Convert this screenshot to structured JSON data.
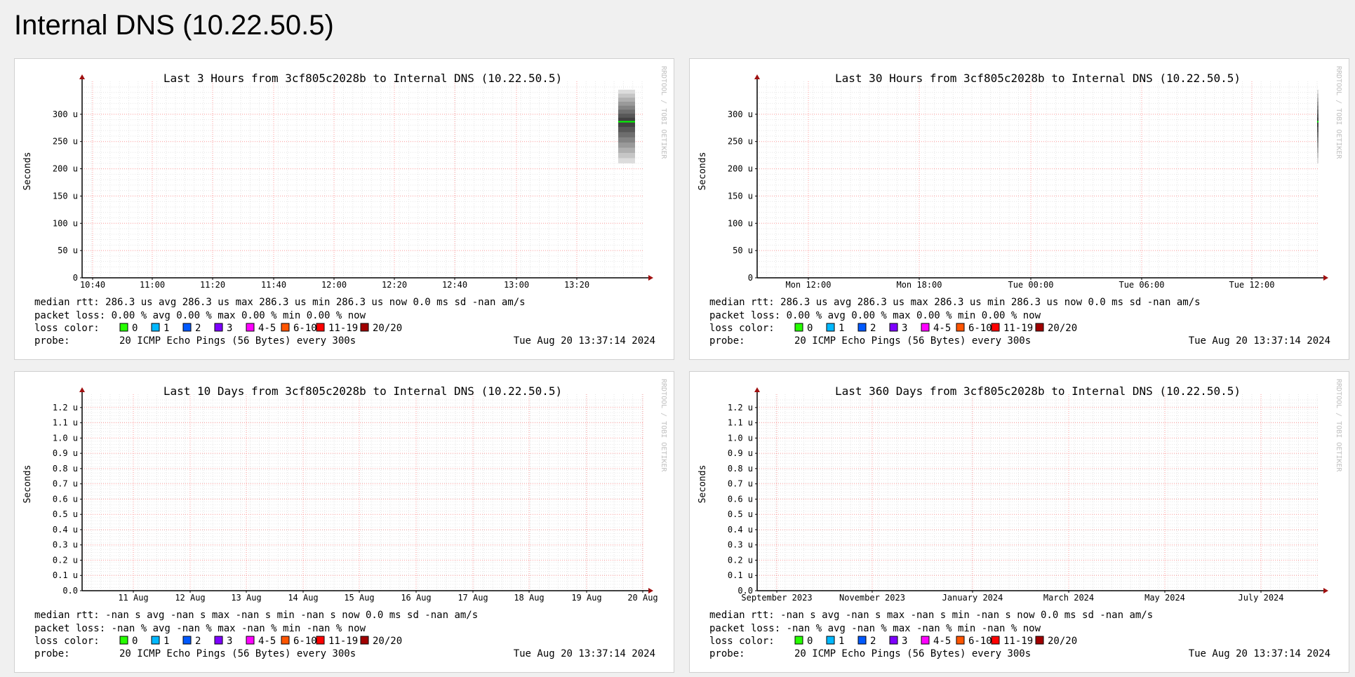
{
  "page": {
    "title": "Internal DNS (10.22.50.5)"
  },
  "colors": {
    "grid_minor": "#e6e6e6",
    "grid_major": "#ff9c9c",
    "axis": "#000000",
    "arrow": "#a01010",
    "median": "#00ff00",
    "smoke_dark": "#222222"
  },
  "legend_colors": [
    "#26ff00",
    "#00b8ff",
    "#0059ff",
    "#7e00ff",
    "#ff00ff",
    "#ff5500",
    "#ff0000",
    "#a10000"
  ],
  "charts": [
    {
      "title": "Last 3 Hours from 3cf805c2028b to Internal DNS (10.22.50.5)",
      "ylabel": "Seconds",
      "watermark": "RRDTOOL / TOBI OETIKER",
      "y_ticks": [
        "0",
        "50 u",
        "100 u",
        "150 u",
        "200 u",
        "250 u",
        "300 u"
      ],
      "x_ticks": [
        "10:40",
        "11:00",
        "11:20",
        "11:40",
        "12:00",
        "12:20",
        "12:40",
        "13:00",
        "13:20"
      ],
      "median_rtt": "median rtt:  286.3 us avg  286.3 us max  286.3 us min  286.3 us now  0.0 ms sd  -nan   am/s",
      "packet_loss": "packet loss: 0.00 % avg  0.00 % max  0.00 % min  0.00 % now",
      "probe_label": "probe:",
      "probe": "20 ICMP Echo Pings (56 Bytes) every 300s",
      "timestamp": "Tue Aug 20 13:37:14 2024"
    },
    {
      "title": "Last 30 Hours from 3cf805c2028b to Internal DNS (10.22.50.5)",
      "ylabel": "Seconds",
      "watermark": "RRDTOOL / TOBI OETIKER",
      "y_ticks": [
        "0",
        "50 u",
        "100 u",
        "150 u",
        "200 u",
        "250 u",
        "300 u"
      ],
      "x_ticks": [
        "Mon 12:00",
        "Mon 18:00",
        "Tue 00:00",
        "Tue 06:00",
        "Tue 12:00"
      ],
      "median_rtt": "median rtt:  286.3 us avg  286.3 us max  286.3 us min  286.3 us now  0.0 ms sd  -nan   am/s",
      "packet_loss": "packet loss: 0.00 % avg  0.00 % max  0.00 % min  0.00 % now",
      "probe_label": "probe:",
      "probe": "20 ICMP Echo Pings (56 Bytes) every 300s",
      "timestamp": "Tue Aug 20 13:37:14 2024"
    },
    {
      "title": "Last 10 Days from 3cf805c2028b to Internal DNS (10.22.50.5)",
      "ylabel": "Seconds",
      "watermark": "RRDTOOL / TOBI OETIKER",
      "y_ticks": [
        "0.0",
        "0.1 u",
        "0.2 u",
        "0.3 u",
        "0.4 u",
        "0.5 u",
        "0.6 u",
        "0.7 u",
        "0.8 u",
        "0.9 u",
        "1.0 u",
        "1.1 u",
        "1.2 u"
      ],
      "x_ticks": [
        "11 Aug",
        "12 Aug",
        "13 Aug",
        "14 Aug",
        "15 Aug",
        "16 Aug",
        "17 Aug",
        "18 Aug",
        "19 Aug",
        "20 Aug"
      ],
      "median_rtt": "median rtt:  -nan  s avg  -nan  s max  -nan  s min  -nan  s now  0.0 ms sd  -nan   am/s",
      "packet_loss": "packet loss: -nan % avg  -nan % max  -nan % min  -nan % now",
      "probe_label": "probe:",
      "probe": "20 ICMP Echo Pings (56 Bytes) every 300s",
      "timestamp": "Tue Aug 20 13:37:14 2024"
    },
    {
      "title": "Last 360 Days from 3cf805c2028b to Internal DNS (10.22.50.5)",
      "ylabel": "Seconds",
      "watermark": "RRDTOOL / TOBI OETIKER",
      "y_ticks": [
        "0.0",
        "0.1 u",
        "0.2 u",
        "0.3 u",
        "0.4 u",
        "0.5 u",
        "0.6 u",
        "0.7 u",
        "0.8 u",
        "0.9 u",
        "1.0 u",
        "1.1 u",
        "1.2 u"
      ],
      "x_ticks": [
        "September 2023",
        "November 2023",
        "January 2024",
        "March 2024",
        "May 2024",
        "July 2024"
      ],
      "median_rtt": "median rtt:  -nan  s avg  -nan  s max  -nan  s min  -nan  s now  0.0 ms sd  -nan   am/s",
      "packet_loss": "packet loss: -nan % avg  -nan % max  -nan % min  -nan % now",
      "probe_label": "probe:",
      "probe": "20 ICMP Echo Pings (56 Bytes) every 300s",
      "timestamp": "Tue Aug 20 13:37:14 2024"
    }
  ],
  "legend": {
    "label": "loss color:",
    "items": [
      "0",
      "1",
      "2",
      "3",
      "4-5",
      "6-10",
      "11-19",
      "20/20"
    ]
  },
  "chart_data": [
    {
      "type": "line",
      "title": "Last 3 Hours from 3cf805c2028b to Internal DNS (10.22.50.5)",
      "ylabel": "Seconds",
      "ylim_us": [
        0,
        350
      ],
      "x_categories": [
        "10:40",
        "11:00",
        "11:20",
        "11:40",
        "12:00",
        "12:20",
        "12:40",
        "13:00",
        "13:20"
      ],
      "series": [
        {
          "values_us": [
            286.3
          ],
          "x": [
            "13:35"
          ]
        }
      ],
      "smoke_range_us": [
        210,
        345
      ]
    },
    {
      "type": "line",
      "title": "Last 30 Hours from 3cf805c2028b to Internal DNS (10.22.50.5)",
      "ylabel": "Seconds",
      "ylim_us": [
        0,
        350
      ],
      "x_categories": [
        "Mon 12:00",
        "Mon 18:00",
        "Tue 00:00",
        "Tue 06:00",
        "Tue 12:00"
      ],
      "series": [
        {
          "values_us": [
            286.3
          ],
          "x": [
            "Tue 13:35"
          ]
        }
      ],
      "smoke_range_us": [
        210,
        345
      ]
    },
    {
      "type": "line",
      "title": "Last 10 Days from 3cf805c2028b to Internal DNS (10.22.50.5)",
      "ylabel": "Seconds",
      "ylim_us": [
        0,
        1.2
      ],
      "x_categories": [
        "11 Aug",
        "12 Aug",
        "13 Aug",
        "14 Aug",
        "15 Aug",
        "16 Aug",
        "17 Aug",
        "18 Aug",
        "19 Aug",
        "20 Aug"
      ],
      "series": []
    },
    {
      "type": "line",
      "title": "Last 360 Days from 3cf805c2028b to Internal DNS (10.22.50.5)",
      "ylabel": "Seconds",
      "ylim_us": [
        0,
        1.2
      ],
      "x_categories": [
        "September 2023",
        "November 2023",
        "January 2024",
        "March 2024",
        "May 2024",
        "July 2024"
      ],
      "series": []
    }
  ]
}
